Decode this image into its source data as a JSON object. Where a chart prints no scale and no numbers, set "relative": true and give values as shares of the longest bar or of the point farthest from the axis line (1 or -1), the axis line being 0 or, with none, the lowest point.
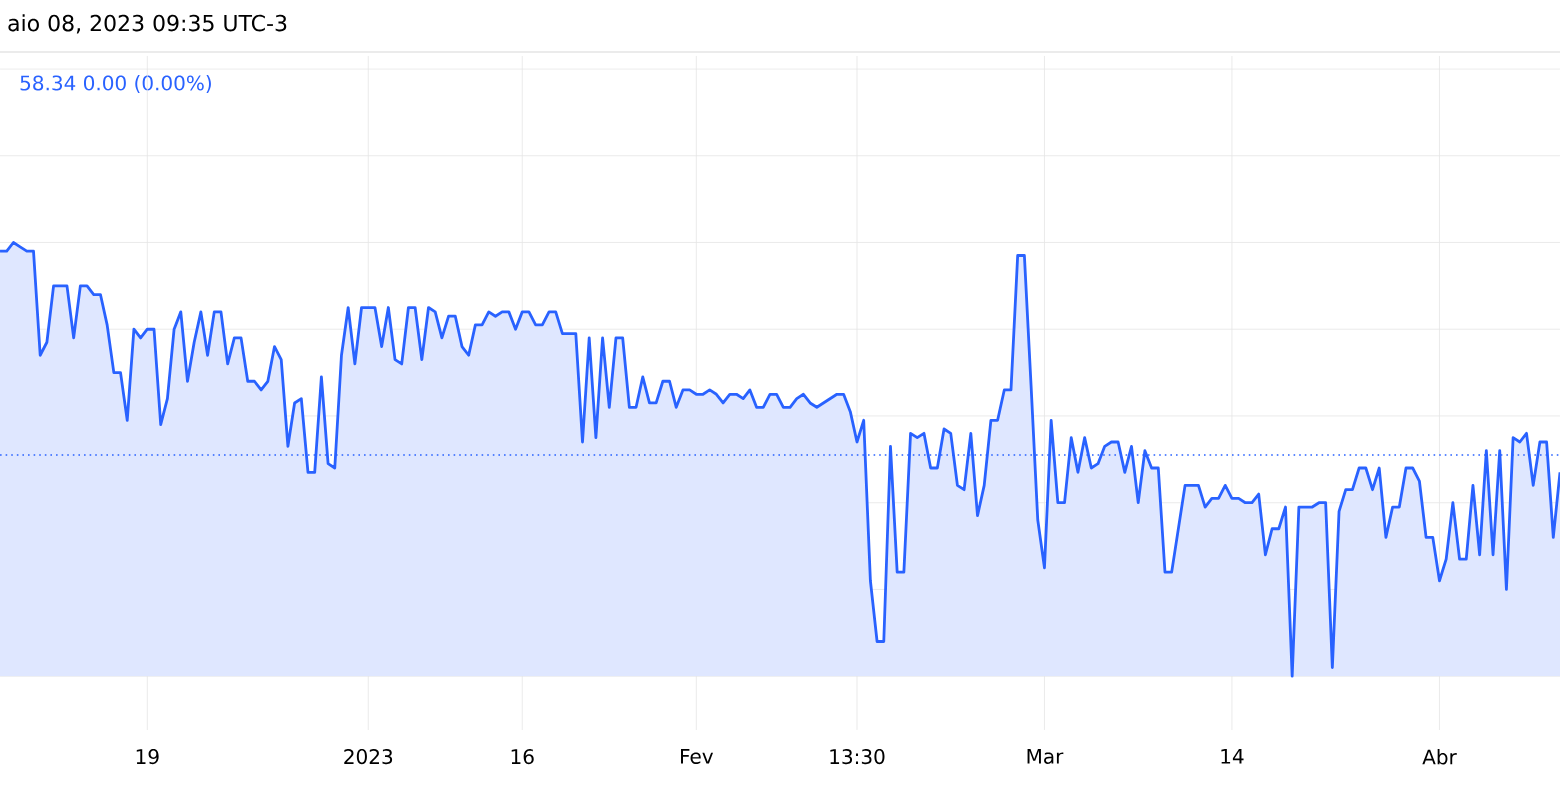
{
  "chart_data": {
    "type": "area",
    "title": "aio 08, 2023 09:35 UTC-3",
    "subtitle": "58.34  0.00 (0.00%)",
    "relative": true,
    "grid": true,
    "categories": [
      null,
      null,
      null,
      null,
      null,
      null,
      null,
      null,
      null,
      null,
      null,
      null,
      null,
      null,
      null,
      null,
      null,
      null,
      null,
      null,
      null,
      null,
      "19",
      null,
      null,
      null,
      null,
      null,
      null,
      null,
      null,
      null,
      null,
      null,
      null,
      null,
      null,
      null,
      null,
      null,
      null,
      null,
      null,
      null,
      null,
      null,
      null,
      null,
      null,
      null,
      null,
      null,
      null,
      null,
      null,
      "2023",
      null,
      null,
      null,
      null,
      null,
      null,
      null,
      null,
      null,
      null,
      null,
      null,
      null,
      null,
      null,
      null,
      null,
      null,
      null,
      null,
      null,
      null,
      "16",
      null,
      null,
      null,
      null,
      null,
      null,
      null,
      null,
      null,
      null,
      null,
      null,
      null,
      null,
      null,
      null,
      null,
      null,
      null,
      null,
      null,
      null,
      null,
      null,
      null,
      "Fev",
      null,
      null,
      null,
      null,
      null,
      null,
      null,
      null,
      null,
      null,
      null,
      null,
      null,
      null,
      null,
      null,
      null,
      null,
      null,
      null,
      null,
      null,
      null,
      "13:30",
      null,
      null,
      null,
      null,
      null,
      null,
      null,
      null,
      null,
      null,
      null,
      null,
      null,
      null,
      null,
      null,
      null,
      null,
      null,
      null,
      null,
      null,
      null,
      null,
      null,
      null,
      null,
      "Mar",
      null,
      null,
      null,
      null,
      null,
      null,
      null,
      null,
      null,
      null,
      null,
      null,
      null,
      null,
      null,
      null,
      null,
      null,
      null,
      null,
      null,
      null,
      null,
      null,
      null,
      null,
      null,
      "14",
      null,
      null,
      null,
      null,
      null,
      null,
      null,
      null,
      null,
      null,
      null,
      null,
      null,
      null,
      null,
      null,
      null,
      null,
      null,
      null,
      null,
      null,
      null,
      null,
      null,
      null,
      null,
      null,
      null,
      null,
      "Abr",
      null,
      null,
      null,
      null,
      null,
      null,
      null,
      null,
      null,
      null,
      null,
      null,
      null,
      null,
      null,
      null,
      null,
      null
    ],
    "ref_lines": [
      {
        "axis": "y",
        "value": 0.51,
        "line_style": "dotted",
        "color": "#2962ff"
      }
    ],
    "series": [
      {
        "color": "#2962ff",
        "values": [
          0.98,
          0.98,
          1.0,
          0.99,
          0.98,
          0.98,
          0.74,
          0.77,
          0.9,
          0.9,
          0.9,
          0.78,
          0.9,
          0.9,
          0.88,
          0.88,
          0.81,
          0.7,
          0.7,
          0.59,
          0.8,
          0.78,
          0.8,
          0.8,
          0.58,
          0.64,
          0.8,
          0.84,
          0.68,
          0.77,
          0.84,
          0.74,
          0.84,
          0.84,
          0.72,
          0.78,
          0.78,
          0.68,
          0.68,
          0.66,
          0.68,
          0.76,
          0.73,
          0.53,
          0.63,
          0.64,
          0.47,
          0.47,
          0.69,
          0.49,
          0.48,
          0.74,
          0.85,
          0.72,
          0.85,
          0.85,
          0.85,
          0.76,
          0.85,
          0.73,
          0.72,
          0.85,
          0.85,
          0.73,
          0.85,
          0.84,
          0.78,
          0.83,
          0.83,
          0.76,
          0.74,
          0.81,
          0.81,
          0.84,
          0.83,
          0.84,
          0.84,
          0.8,
          0.84,
          0.84,
          0.81,
          0.81,
          0.84,
          0.84,
          0.79,
          0.79,
          0.79,
          0.54,
          0.78,
          0.55,
          0.78,
          0.62,
          0.78,
          0.78,
          0.62,
          0.62,
          0.69,
          0.63,
          0.63,
          0.68,
          0.68,
          0.62,
          0.66,
          0.66,
          0.65,
          0.65,
          0.66,
          0.65,
          0.63,
          0.65,
          0.65,
          0.64,
          0.66,
          0.62,
          0.62,
          0.65,
          0.65,
          0.62,
          0.62,
          0.64,
          0.65,
          0.63,
          0.62,
          0.63,
          0.64,
          0.65,
          0.65,
          0.61,
          0.54,
          0.59,
          0.22,
          0.08,
          0.08,
          0.53,
          0.24,
          0.24,
          0.56,
          0.55,
          0.56,
          0.48,
          0.48,
          0.57,
          0.56,
          0.44,
          0.43,
          0.56,
          0.37,
          0.44,
          0.59,
          0.59,
          0.66,
          0.66,
          0.97,
          0.97,
          0.67,
          0.36,
          0.25,
          0.59,
          0.4,
          0.4,
          0.55,
          0.47,
          0.55,
          0.48,
          0.49,
          0.53,
          0.54,
          0.54,
          0.47,
          0.53,
          0.4,
          0.52,
          0.48,
          0.48,
          0.24,
          0.24,
          0.34,
          0.44,
          0.44,
          0.44,
          0.39,
          0.41,
          0.41,
          0.44,
          0.41,
          0.41,
          0.4,
          0.4,
          0.42,
          0.28,
          0.34,
          0.34,
          0.39,
          0,
          0.39,
          0.39,
          0.39,
          0.4,
          0.4,
          0.02,
          0.38,
          0.43,
          0.43,
          0.48,
          0.48,
          0.43,
          0.48,
          0.32,
          0.39,
          0.39,
          0.48,
          0.48,
          0.45,
          0.32,
          0.32,
          0.22,
          0.27,
          0.4,
          0.27,
          0.27,
          0.44,
          0.28,
          0.52,
          0.28,
          0.52,
          0.2,
          0.55,
          0.54,
          0.56,
          0.44,
          0.54,
          0.54,
          0.32,
          0.47
        ]
      }
    ]
  }
}
